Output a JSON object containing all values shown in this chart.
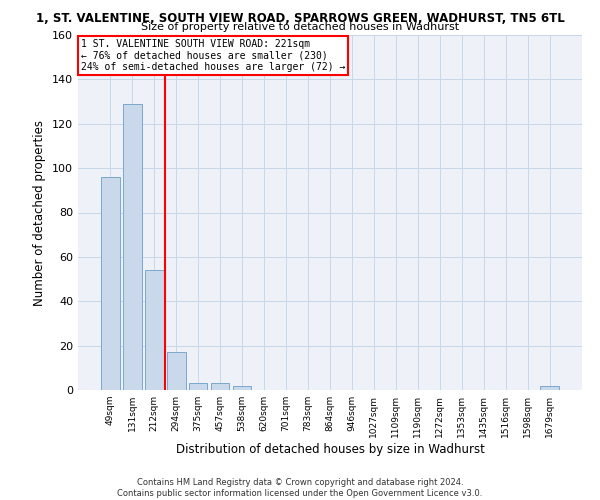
{
  "title": "1, ST. VALENTINE, SOUTH VIEW ROAD, SPARROWS GREEN, WADHURST, TN5 6TL",
  "subtitle": "Size of property relative to detached houses in Wadhurst",
  "xlabel": "Distribution of detached houses by size in Wadhurst",
  "ylabel": "Number of detached properties",
  "bar_labels": [
    "49sqm",
    "131sqm",
    "212sqm",
    "294sqm",
    "375sqm",
    "457sqm",
    "538sqm",
    "620sqm",
    "701sqm",
    "783sqm",
    "864sqm",
    "946sqm",
    "1027sqm",
    "1109sqm",
    "1190sqm",
    "1272sqm",
    "1353sqm",
    "1435sqm",
    "1516sqm",
    "1598sqm",
    "1679sqm"
  ],
  "bar_values": [
    96,
    129,
    54,
    17,
    3,
    3,
    2,
    0,
    0,
    0,
    0,
    0,
    0,
    0,
    0,
    0,
    0,
    0,
    0,
    0,
    2
  ],
  "bar_color": "#c9d9eb",
  "bar_edgecolor": "#7aa8cc",
  "grid_color": "#c8d8e8",
  "ylim": [
    0,
    160
  ],
  "yticks": [
    0,
    20,
    40,
    60,
    80,
    100,
    120,
    140,
    160
  ],
  "red_line_x": 2.5,
  "annotation_title": "1 ST. VALENTINE SOUTH VIEW ROAD: 221sqm",
  "annotation_line1": "← 76% of detached houses are smaller (230)",
  "annotation_line2": "24% of semi-detached houses are larger (72) →",
  "footer_line1": "Contains HM Land Registry data © Crown copyright and database right 2024.",
  "footer_line2": "Contains public sector information licensed under the Open Government Licence v3.0.",
  "background_color": "#eef2f8"
}
